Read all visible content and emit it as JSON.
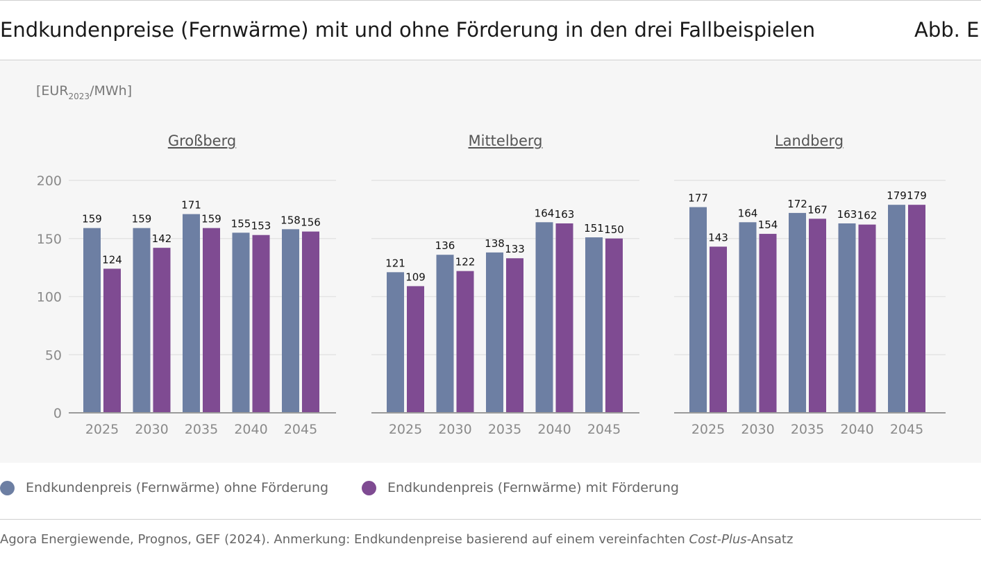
{
  "header": {
    "title": "Endkundenpreise (Fernwärme) mit und ohne Förderung in den drei Fallbeispielen",
    "figure_label": "Abb. E"
  },
  "colors": {
    "ohne": "#6d7fa3",
    "mit": "#7f4b92",
    "panel_bg": "#f6f6f6",
    "grid": "#e4e4e4",
    "axis": "#9a9a9a",
    "tick": "#8a8a8a"
  },
  "chart_data": {
    "type": "bar",
    "unit_label": {
      "main": "[EUR",
      "sub": "2023",
      "tail": "/MWh]"
    },
    "y_ticks": [
      0,
      50,
      100,
      150,
      200
    ],
    "ylim": [
      0,
      200
    ],
    "categories": [
      "2025",
      "2030",
      "2035",
      "2040",
      "2045"
    ],
    "panels": [
      {
        "title": "Großberg",
        "series": [
          {
            "name": "Endkundenpreis (Fernwärme) ohne Förderung",
            "values": [
              159,
              159,
              171,
              155,
              158
            ]
          },
          {
            "name": "Endkundenpreis (Fernwärme) mit Förderung",
            "values": [
              124,
              142,
              159,
              153,
              156
            ]
          }
        ]
      },
      {
        "title": "Mittelberg",
        "series": [
          {
            "name": "Endkundenpreis (Fernwärme) ohne Förderung",
            "values": [
              121,
              136,
              138,
              164,
              151
            ]
          },
          {
            "name": "Endkundenpreis (Fernwärme) mit Förderung",
            "values": [
              109,
              122,
              133,
              163,
              150
            ]
          }
        ]
      },
      {
        "title": "Landberg",
        "series": [
          {
            "name": "Endkundenpreis (Fernwärme) ohne Förderung",
            "values": [
              177,
              164,
              172,
              163,
              179
            ]
          },
          {
            "name": "Endkundenpreis (Fernwärme) mit Förderung",
            "values": [
              143,
              154,
              167,
              162,
              179
            ]
          }
        ]
      }
    ],
    "legend": [
      "Endkundenpreis (Fernwärme) ohne Förderung",
      "Endkundenpreis (Fernwärme) mit Förderung"
    ]
  },
  "footer": {
    "source_prefix": "Agora Energiewende, Prognos, GEF (2024). Anmerkung: Endkundenpreise basierend auf einem vereinfachten ",
    "source_italic": "Cost-Plus",
    "source_suffix": "-Ansatz"
  }
}
